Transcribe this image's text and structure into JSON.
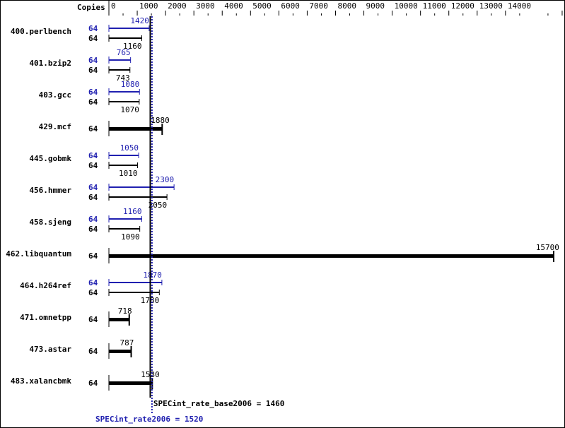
{
  "chart_data": {
    "type": "bar",
    "orientation": "horizontal",
    "copies_header": "Copies",
    "xlim": [
      0,
      16000
    ],
    "ticks": [
      0,
      1000,
      2000,
      3000,
      4000,
      5000,
      6000,
      7000,
      8000,
      9000,
      10000,
      11000,
      12000,
      13000,
      14000,
      16000
    ],
    "colors": {
      "base": "#000000",
      "peak": "#2020b0"
    },
    "benchmarks": [
      {
        "name": "400.perlbench",
        "peak_copies": "64",
        "peak": 1420,
        "base_copies": "64",
        "base": 1160
      },
      {
        "name": "401.bzip2",
        "peak_copies": "64",
        "peak": 765,
        "base_copies": "64",
        "base": 743
      },
      {
        "name": "403.gcc",
        "peak_copies": "64",
        "peak": 1080,
        "base_copies": "64",
        "base": 1070
      },
      {
        "name": "429.mcf",
        "base_copies": "64",
        "base": 1880
      },
      {
        "name": "445.gobmk",
        "peak_copies": "64",
        "peak": 1050,
        "base_copies": "64",
        "base": 1010
      },
      {
        "name": "456.hmmer",
        "peak_copies": "64",
        "peak": 2300,
        "base_copies": "64",
        "base": 2050
      },
      {
        "name": "458.sjeng",
        "peak_copies": "64",
        "peak": 1160,
        "base_copies": "64",
        "base": 1090
      },
      {
        "name": "462.libquantum",
        "base_copies": "64",
        "base": 15700
      },
      {
        "name": "464.h264ref",
        "peak_copies": "64",
        "peak": 1870,
        "base_copies": "64",
        "base": 1780
      },
      {
        "name": "471.omnetpp",
        "base_copies": "64",
        "base": 718
      },
      {
        "name": "473.astar",
        "base_copies": "64",
        "base": 787
      },
      {
        "name": "483.xalancbmk",
        "base_copies": "64",
        "base": 1530
      }
    ],
    "base_summary": {
      "label": "SPECint_rate_base2006 = 1460",
      "value": 1460
    },
    "peak_summary": {
      "label": "SPECint_rate2006 = 1520",
      "value": 1520
    }
  }
}
